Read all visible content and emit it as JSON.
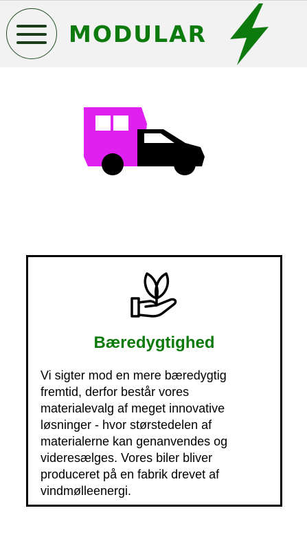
{
  "header": {
    "menu_icon": "hamburger-icon",
    "logo_text": "MODULAR",
    "logo_icon": "lightning-bolt-icon",
    "brand_color": "#0d7a0d"
  },
  "hero": {
    "image_icon": "modular-truck-icon",
    "camper_color": "#e020f0"
  },
  "card": {
    "icon": "hand-with-plant-icon",
    "title": "Bæredygtighed",
    "body": "Vi sigter mod en mere bæredygtig fremtid, derfor består vores materialevalg af meget innovative løsninger - hvor størstedelen af materialerne kan genanvendes og videresælges. Vores biler bliver produceret på en fabrik drevet af vindmølleenergi."
  }
}
